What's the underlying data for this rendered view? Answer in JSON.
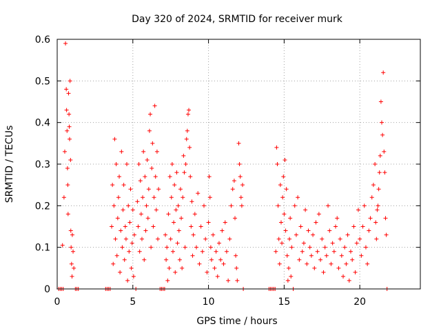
{
  "chart_data": {
    "type": "scatter",
    "title": "Day 320 of 2024, SRMTID for receiver murk",
    "xlabel": "GPS time / hours",
    "ylabel": "SRMTID / TECUs",
    "xlim": [
      0,
      24
    ],
    "ylim": [
      0,
      0.6
    ],
    "xticks": [
      0,
      5,
      10,
      15,
      20
    ],
    "xtick_labels": [
      "0",
      "5",
      "10",
      "15",
      "20"
    ],
    "yticks": [
      0,
      0.1,
      0.2,
      0.3,
      0.4,
      0.5,
      0.6
    ],
    "ytick_labels": [
      "0",
      "0.1",
      "0.2",
      "0.3",
      "0.4",
      "0.5",
      "0.6"
    ],
    "grid": true,
    "marker": "plus",
    "marker_color": "#ff0000",
    "series": [
      {
        "points": [
          [
            0.1,
            0.0
          ],
          [
            0.2,
            0.0
          ],
          [
            0.3,
            0.0
          ],
          [
            0.4,
            0.0
          ],
          [
            0.35,
            0.105
          ],
          [
            0.45,
            0.22
          ],
          [
            0.5,
            0.33
          ],
          [
            0.55,
            0.59
          ],
          [
            0.6,
            0.48
          ],
          [
            0.62,
            0.43
          ],
          [
            0.65,
            0.38
          ],
          [
            0.68,
            0.29
          ],
          [
            0.7,
            0.25
          ],
          [
            0.72,
            0.18
          ],
          [
            0.75,
            0.47
          ],
          [
            0.78,
            0.42
          ],
          [
            0.8,
            0.39
          ],
          [
            0.82,
            0.36
          ],
          [
            0.85,
            0.5
          ],
          [
            0.88,
            0.31
          ],
          [
            0.9,
            0.14
          ],
          [
            0.92,
            0.1
          ],
          [
            0.95,
            0.06
          ],
          [
            0.98,
            0.03
          ],
          [
            1.0,
            0.13
          ],
          [
            1.05,
            0.09
          ],
          [
            1.1,
            0.05
          ],
          [
            1.2,
            0.0
          ],
          [
            1.3,
            0.0
          ],
          [
            1.4,
            0.0
          ],
          [
            3.2,
            0.0
          ],
          [
            3.3,
            0.0
          ],
          [
            3.4,
            0.0
          ],
          [
            3.5,
            0.0
          ],
          [
            3.6,
            0.15
          ],
          [
            3.65,
            0.25
          ],
          [
            3.7,
            0.06
          ],
          [
            3.75,
            0.2
          ],
          [
            3.8,
            0.36
          ],
          [
            3.85,
            0.12
          ],
          [
            3.9,
            0.3
          ],
          [
            3.95,
            0.08
          ],
          [
            4.0,
            0.17
          ],
          [
            4.05,
            0.22
          ],
          [
            4.1,
            0.27
          ],
          [
            4.15,
            0.04
          ],
          [
            4.2,
            0.14
          ],
          [
            4.25,
            0.33
          ],
          [
            4.3,
            0.1
          ],
          [
            4.35,
            0.19
          ],
          [
            4.4,
            0.25
          ],
          [
            4.45,
            0.07
          ],
          [
            4.5,
            0.15
          ],
          [
            4.55,
            0.12
          ],
          [
            4.6,
            0.3
          ],
          [
            4.65,
            0.02
          ],
          [
            4.7,
            0.2
          ],
          [
            4.75,
            0.09
          ],
          [
            4.8,
            0.16
          ],
          [
            4.85,
            0.24
          ],
          [
            4.9,
            0.05
          ],
          [
            4.95,
            0.11
          ],
          [
            5.0,
            0.19
          ],
          [
            5.05,
            0.03
          ],
          [
            5.1,
            0.13
          ],
          [
            5.2,
            0.0
          ],
          [
            5.3,
            0.21
          ],
          [
            5.35,
            0.15
          ],
          [
            5.4,
            0.3
          ],
          [
            5.45,
            0.09
          ],
          [
            5.5,
            0.26
          ],
          [
            5.55,
            0.18
          ],
          [
            5.6,
            0.12
          ],
          [
            5.65,
            0.22
          ],
          [
            5.7,
            0.33
          ],
          [
            5.75,
            0.07
          ],
          [
            5.8,
            0.27
          ],
          [
            5.85,
            0.14
          ],
          [
            5.9,
            0.2
          ],
          [
            5.95,
            0.31
          ],
          [
            6.0,
            0.17
          ],
          [
            6.05,
            0.24
          ],
          [
            6.1,
            0.38
          ],
          [
            6.15,
            0.42
          ],
          [
            6.2,
            0.1
          ],
          [
            6.25,
            0.29
          ],
          [
            6.3,
            0.35
          ],
          [
            6.35,
            0.15
          ],
          [
            6.4,
            0.22
          ],
          [
            6.45,
            0.44
          ],
          [
            6.5,
            0.27
          ],
          [
            6.55,
            0.19
          ],
          [
            6.6,
            0.33
          ],
          [
            6.65,
            0.12
          ],
          [
            6.7,
            0.24
          ],
          [
            6.8,
            0.0
          ],
          [
            6.9,
            0.0
          ],
          [
            7.0,
            0.0
          ],
          [
            7.1,
            0.0
          ],
          [
            7.15,
            0.13
          ],
          [
            7.2,
            0.07
          ],
          [
            7.25,
            0.1
          ],
          [
            7.3,
            0.02
          ],
          [
            7.35,
            0.18
          ],
          [
            7.4,
            0.05
          ],
          [
            7.45,
            0.27
          ],
          [
            7.5,
            0.12
          ],
          [
            7.55,
            0.22
          ],
          [
            7.6,
            0.3
          ],
          [
            7.65,
            0.09
          ],
          [
            7.7,
            0.16
          ],
          [
            7.75,
            0.25
          ],
          [
            7.8,
            0.04
          ],
          [
            7.85,
            0.19
          ],
          [
            7.9,
            0.28
          ],
          [
            7.95,
            0.11
          ],
          [
            8.0,
            0.2
          ],
          [
            8.05,
            0.14
          ],
          [
            8.1,
            0.07
          ],
          [
            8.15,
            0.24
          ],
          [
            8.2,
            0.17
          ],
          [
            8.25,
            0.05
          ],
          [
            8.3,
            0.22
          ],
          [
            8.35,
            0.32
          ],
          [
            8.4,
            0.28
          ],
          [
            8.45,
            0.1
          ],
          [
            8.5,
            0.3
          ],
          [
            8.55,
            0.36
          ],
          [
            8.6,
            0.38
          ],
          [
            8.65,
            0.42
          ],
          [
            8.7,
            0.43
          ],
          [
            8.75,
            0.34
          ],
          [
            8.8,
            0.27
          ],
          [
            8.85,
            0.15
          ],
          [
            8.9,
            0.21
          ],
          [
            8.95,
            0.08
          ],
          [
            9.0,
            0.13
          ],
          [
            9.1,
            0.18
          ],
          [
            9.2,
            0.1
          ],
          [
            9.3,
            0.23
          ],
          [
            9.4,
            0.06
          ],
          [
            9.5,
            0.15
          ],
          [
            9.6,
            0.09
          ],
          [
            9.7,
            0.2
          ],
          [
            9.8,
            0.12
          ],
          [
            9.9,
            0.04
          ],
          [
            10.0,
            0.16
          ],
          [
            10.05,
            0.27
          ],
          [
            10.1,
            0.22
          ],
          [
            10.15,
            0.1
          ],
          [
            10.2,
            0.07
          ],
          [
            10.3,
            0.13
          ],
          [
            10.4,
            0.05
          ],
          [
            10.5,
            0.09
          ],
          [
            10.6,
            0.03
          ],
          [
            10.7,
            0.11
          ],
          [
            10.8,
            0.07
          ],
          [
            10.9,
            0.14
          ],
          [
            11.0,
            0.06
          ],
          [
            11.1,
            0.16
          ],
          [
            11.2,
            0.09
          ],
          [
            11.3,
            0.02
          ],
          [
            11.4,
            0.12
          ],
          [
            11.5,
            0.2
          ],
          [
            11.6,
            0.24
          ],
          [
            11.7,
            0.26
          ],
          [
            11.75,
            0.17
          ],
          [
            11.8,
            0.08
          ],
          [
            11.85,
            0.05
          ],
          [
            11.9,
            0.02
          ],
          [
            12.0,
            0.35
          ],
          [
            12.05,
            0.3
          ],
          [
            12.1,
            0.27
          ],
          [
            12.15,
            0.22
          ],
          [
            12.2,
            0.2
          ],
          [
            12.25,
            0.25
          ],
          [
            12.3,
            0.0
          ],
          [
            14.0,
            0.0
          ],
          [
            14.1,
            0.0
          ],
          [
            14.2,
            0.0
          ],
          [
            14.3,
            0.0
          ],
          [
            14.4,
            0.0
          ],
          [
            14.45,
            0.09
          ],
          [
            14.5,
            0.34
          ],
          [
            14.55,
            0.3
          ],
          [
            14.6,
            0.2
          ],
          [
            14.65,
            0.12
          ],
          [
            14.7,
            0.06
          ],
          [
            14.75,
            0.25
          ],
          [
            14.8,
            0.16
          ],
          [
            14.85,
            0.11
          ],
          [
            14.9,
            0.22
          ],
          [
            14.95,
            0.27
          ],
          [
            15.0,
            0.18
          ],
          [
            15.05,
            0.31
          ],
          [
            15.1,
            0.14
          ],
          [
            15.15,
            0.24
          ],
          [
            15.2,
            0.08
          ],
          [
            15.25,
            0.02
          ],
          [
            15.3,
            0.05
          ],
          [
            15.35,
            0.12
          ],
          [
            15.4,
            0.17
          ],
          [
            15.45,
            0.03
          ],
          [
            15.5,
            0.1
          ],
          [
            15.6,
            0.0
          ],
          [
            15.7,
            0.2
          ],
          [
            15.8,
            0.13
          ],
          [
            15.9,
            0.22
          ],
          [
            16.0,
            0.07
          ],
          [
            16.1,
            0.15
          ],
          [
            16.2,
            0.09
          ],
          [
            16.3,
            0.11
          ],
          [
            16.4,
            0.19
          ],
          [
            16.5,
            0.06
          ],
          [
            16.6,
            0.14
          ],
          [
            16.7,
            0.1
          ],
          [
            16.8,
            0.08
          ],
          [
            16.9,
            0.13
          ],
          [
            17.0,
            0.05
          ],
          [
            17.1,
            0.16
          ],
          [
            17.2,
            0.09
          ],
          [
            17.3,
            0.18
          ],
          [
            17.4,
            0.07
          ],
          [
            17.5,
            0.12
          ],
          [
            17.6,
            0.04
          ],
          [
            17.7,
            0.1
          ],
          [
            17.8,
            0.08
          ],
          [
            17.9,
            0.2
          ],
          [
            18.0,
            0.14
          ],
          [
            18.1,
            0.06
          ],
          [
            18.2,
            0.11
          ],
          [
            18.3,
            0.09
          ],
          [
            18.4,
            0.15
          ],
          [
            18.5,
            0.17
          ],
          [
            18.6,
            0.05
          ],
          [
            18.7,
            0.12
          ],
          [
            18.8,
            0.08
          ],
          [
            18.9,
            0.03
          ],
          [
            19.0,
            0.1
          ],
          [
            19.1,
            0.06
          ],
          [
            19.2,
            0.13
          ],
          [
            19.3,
            0.02
          ],
          [
            19.4,
            0.09
          ],
          [
            19.5,
            0.07
          ],
          [
            19.6,
            0.15
          ],
          [
            19.7,
            0.04
          ],
          [
            19.8,
            0.11
          ],
          [
            19.9,
            0.19
          ],
          [
            20.0,
            0.12
          ],
          [
            20.1,
            0.08
          ],
          [
            20.2,
            0.15
          ],
          [
            20.3,
            0.2
          ],
          [
            20.4,
            0.1
          ],
          [
            20.5,
            0.06
          ],
          [
            20.6,
            0.14
          ],
          [
            20.7,
            0.17
          ],
          [
            20.8,
            0.22
          ],
          [
            20.9,
            0.25
          ],
          [
            21.0,
            0.3
          ],
          [
            21.05,
            0.16
          ],
          [
            21.1,
            0.12
          ],
          [
            21.15,
            0.19
          ],
          [
            21.2,
            0.2
          ],
          [
            21.25,
            0.24
          ],
          [
            21.3,
            0.28
          ],
          [
            21.35,
            0.32
          ],
          [
            21.4,
            0.45
          ],
          [
            21.45,
            0.4
          ],
          [
            21.5,
            0.37
          ],
          [
            21.55,
            0.52
          ],
          [
            21.6,
            0.33
          ],
          [
            21.65,
            0.28
          ],
          [
            21.7,
            0.17
          ],
          [
            21.75,
            0.13
          ],
          [
            21.8,
            0.0
          ]
        ]
      }
    ]
  }
}
